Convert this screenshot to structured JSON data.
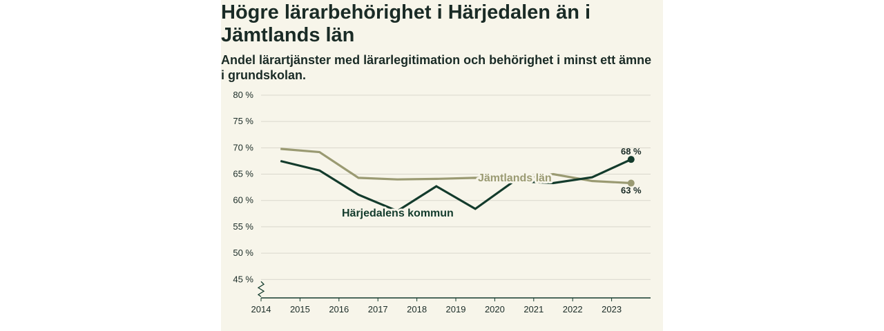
{
  "title": "Högre lärarbehörighet i Härjedalen än i Jämtlands län",
  "subtitle": "Andel lärartjänster med lärarlegitimation och behörighet i minst ett ämne i grundskolan.",
  "colors": {
    "background": "#f7f5ea",
    "harjedalen": "#133b2c",
    "jamtland": "#9a9a72",
    "text": "#1a2b26",
    "grid": "#d9d7cc"
  },
  "chart_data": {
    "type": "line",
    "title": "Högre lärarbehörighet i Härjedalen än i Jämtlands län",
    "subtitle": "Andel lärartjänster med lärarlegitimation och behörighet i minst ett ämne i grundskolan.",
    "xlabel": "",
    "ylabel": "",
    "x": [
      2014.5,
      2015.5,
      2016.5,
      2017.5,
      2018.5,
      2019.5,
      2020.5,
      2021.5,
      2022.5,
      2023.5
    ],
    "x_ticks": [
      "2014",
      "2015",
      "2016",
      "2017",
      "2018",
      "2019",
      "2020",
      "2021",
      "2022",
      "2023"
    ],
    "x_range": [
      2014,
      2024
    ],
    "y_ticks": [
      "80 %",
      "75 %",
      "70 %",
      "65 %",
      "60 %",
      "55 %",
      "50 %",
      "45 %"
    ],
    "y_tick_values": [
      80,
      75,
      70,
      65,
      60,
      55,
      50,
      45
    ],
    "ylim": [
      41.5,
      80
    ],
    "y_axis_break": true,
    "grid": true,
    "series": [
      {
        "name": "Jämtlands län",
        "label": "Jämtlands län",
        "values": [
          69.8,
          69.2,
          64.3,
          64.0,
          64.1,
          64.3,
          63.9,
          65.0,
          63.7,
          63.3
        ],
        "end_label": "63 %"
      },
      {
        "name": "Härjedalens kommun",
        "label": "Härjedalens kommun",
        "values": [
          67.5,
          65.7,
          61.1,
          58.0,
          62.7,
          58.4,
          63.7,
          63.3,
          64.4,
          67.8
        ],
        "end_label": "68 %"
      }
    ]
  }
}
